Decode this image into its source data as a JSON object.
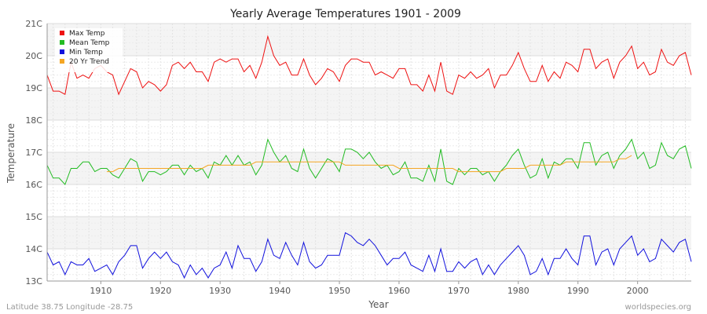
{
  "chart_data": {
    "type": "line",
    "title": "Yearly Average Temperatures 1901 - 2009",
    "xlabel": "Year",
    "ylabel": "Temperature",
    "xlim": [
      1901,
      2009
    ],
    "ylim": [
      13,
      21
    ],
    "x_ticks": [
      1910,
      1920,
      1930,
      1940,
      1950,
      1960,
      1970,
      1980,
      1990,
      2000
    ],
    "y_ticks": [
      {
        "value": 13,
        "label": "13C"
      },
      {
        "value": 14,
        "label": "14C"
      },
      {
        "value": 15,
        "label": "15C"
      },
      {
        "value": 16,
        "label": "16C"
      },
      {
        "value": 17,
        "label": "17C"
      },
      {
        "value": 18,
        "label": "18C"
      },
      {
        "value": 19,
        "label": "19C"
      },
      {
        "value": 20,
        "label": "20C"
      },
      {
        "value": 21,
        "label": "21C"
      }
    ],
    "grid": true,
    "legend_position": "top-left",
    "x_start": 1901,
    "series": [
      {
        "name": "Max Temp",
        "color": "#ee1111",
        "values": [
          19.4,
          18.9,
          18.9,
          18.8,
          19.8,
          19.3,
          19.4,
          19.3,
          19.6,
          19.7,
          19.5,
          19.4,
          18.8,
          19.2,
          19.6,
          19.5,
          19.0,
          19.2,
          19.1,
          18.9,
          19.1,
          19.7,
          19.8,
          19.6,
          19.8,
          19.5,
          19.5,
          19.2,
          19.8,
          19.9,
          19.8,
          19.9,
          19.9,
          19.5,
          19.7,
          19.3,
          19.8,
          20.6,
          20.0,
          19.7,
          19.8,
          19.4,
          19.4,
          19.9,
          19.4,
          19.1,
          19.3,
          19.6,
          19.5,
          19.2,
          19.7,
          19.9,
          19.9,
          19.8,
          19.8,
          19.4,
          19.5,
          19.4,
          19.3,
          19.6,
          19.6,
          19.1,
          19.1,
          18.9,
          19.4,
          18.9,
          19.8,
          18.9,
          18.8,
          19.4,
          19.3,
          19.5,
          19.3,
          19.4,
          19.6,
          19.0,
          19.4,
          19.4,
          19.7,
          20.1,
          19.6,
          19.2,
          19.2,
          19.7,
          19.2,
          19.5,
          19.3,
          19.8,
          19.7,
          19.5,
          20.2,
          20.2,
          19.6,
          19.8,
          19.9,
          19.3,
          19.8,
          20.0,
          20.3,
          19.6,
          19.8,
          19.4,
          19.5,
          20.2,
          19.8,
          19.7,
          20.0,
          20.1,
          19.4
        ]
      },
      {
        "name": "Mean Temp",
        "color": "#22bb22",
        "values": [
          16.6,
          16.2,
          16.2,
          16.0,
          16.5,
          16.5,
          16.7,
          16.7,
          16.4,
          16.5,
          16.5,
          16.3,
          16.2,
          16.5,
          16.8,
          16.7,
          16.1,
          16.4,
          16.4,
          16.3,
          16.4,
          16.6,
          16.6,
          16.3,
          16.6,
          16.4,
          16.5,
          16.2,
          16.7,
          16.6,
          16.9,
          16.6,
          16.9,
          16.6,
          16.7,
          16.3,
          16.6,
          17.4,
          17.0,
          16.7,
          16.9,
          16.5,
          16.4,
          17.1,
          16.5,
          16.2,
          16.5,
          16.8,
          16.7,
          16.4,
          17.1,
          17.1,
          17.0,
          16.8,
          17.0,
          16.7,
          16.5,
          16.6,
          16.3,
          16.4,
          16.7,
          16.2,
          16.2,
          16.1,
          16.6,
          16.1,
          17.1,
          16.1,
          16.0,
          16.5,
          16.3,
          16.5,
          16.5,
          16.3,
          16.4,
          16.1,
          16.4,
          16.6,
          16.9,
          17.1,
          16.6,
          16.2,
          16.3,
          16.8,
          16.2,
          16.7,
          16.6,
          16.8,
          16.8,
          16.5,
          17.3,
          17.3,
          16.6,
          16.9,
          17.0,
          16.5,
          16.9,
          17.1,
          17.4,
          16.8,
          17.0,
          16.5,
          16.6,
          17.3,
          16.9,
          16.8,
          17.1,
          17.2,
          16.5
        ]
      },
      {
        "name": "Min Temp",
        "color": "#1111dd",
        "values": [
          13.9,
          13.5,
          13.6,
          13.2,
          13.6,
          13.5,
          13.5,
          13.7,
          13.3,
          13.4,
          13.5,
          13.2,
          13.6,
          13.8,
          14.1,
          14.1,
          13.4,
          13.7,
          13.9,
          13.7,
          13.9,
          13.6,
          13.5,
          13.1,
          13.5,
          13.2,
          13.4,
          13.1,
          13.4,
          13.5,
          13.9,
          13.4,
          14.1,
          13.7,
          13.7,
          13.3,
          13.6,
          14.3,
          13.8,
          13.7,
          14.2,
          13.8,
          13.5,
          14.2,
          13.6,
          13.4,
          13.5,
          13.8,
          13.8,
          13.8,
          14.5,
          14.4,
          14.2,
          14.1,
          14.3,
          14.1,
          13.8,
          13.5,
          13.7,
          13.7,
          13.9,
          13.5,
          13.4,
          13.3,
          13.8,
          13.3,
          14.0,
          13.3,
          13.3,
          13.6,
          13.4,
          13.6,
          13.7,
          13.2,
          13.5,
          13.2,
          13.5,
          13.7,
          13.9,
          14.1,
          13.8,
          13.2,
          13.3,
          13.7,
          13.2,
          13.7,
          13.7,
          14.0,
          13.7,
          13.5,
          14.4,
          14.4,
          13.5,
          13.9,
          14.0,
          13.5,
          14.0,
          14.2,
          14.4,
          13.8,
          14.0,
          13.6,
          13.7,
          14.3,
          14.1,
          13.9,
          14.2,
          14.3,
          13.6
        ]
      },
      {
        "name": "20 Yr Trend",
        "color": "#f5a623",
        "x_start": 1911,
        "values": [
          16.4,
          16.4,
          16.5,
          16.5,
          16.5,
          16.5,
          16.5,
          16.5,
          16.5,
          16.5,
          16.5,
          16.5,
          16.5,
          16.5,
          16.5,
          16.5,
          16.5,
          16.6,
          16.6,
          16.6,
          16.6,
          16.6,
          16.6,
          16.6,
          16.6,
          16.7,
          16.7,
          16.7,
          16.7,
          16.7,
          16.7,
          16.7,
          16.7,
          16.7,
          16.7,
          16.7,
          16.7,
          16.7,
          16.7,
          16.7,
          16.6,
          16.6,
          16.6,
          16.6,
          16.6,
          16.6,
          16.6,
          16.6,
          16.6,
          16.5,
          16.5,
          16.5,
          16.5,
          16.5,
          16.5,
          16.5,
          16.5,
          16.5,
          16.5,
          16.4,
          16.4,
          16.4,
          16.4,
          16.4,
          16.4,
          16.4,
          16.4,
          16.5,
          16.5,
          16.5,
          16.5,
          16.6,
          16.6,
          16.6,
          16.6,
          16.6,
          16.6,
          16.7,
          16.7,
          16.7,
          16.7,
          16.7,
          16.7,
          16.7,
          16.7,
          16.7,
          16.8,
          16.8,
          16.9
        ]
      }
    ]
  },
  "footer": {
    "location": "Latitude 38.75 Longitude -28.75",
    "source": "worldspecies.org"
  }
}
